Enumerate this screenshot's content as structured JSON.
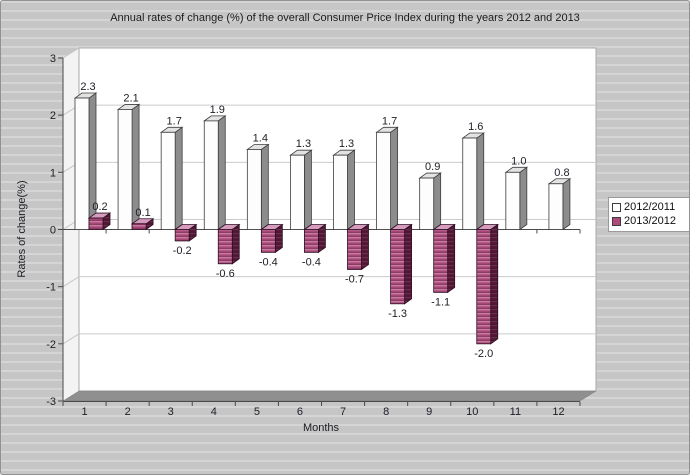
{
  "chart_data": {
    "type": "bar",
    "title": "Annual rates of change (%) of the overall Consumer Price Index during the years 2012 and 2013",
    "xlabel": "Months",
    "ylabel": "Rates of change(%)",
    "categories": [
      "1",
      "2",
      "3",
      "4",
      "5",
      "6",
      "7",
      "8",
      "9",
      "10",
      "11",
      "12"
    ],
    "series": [
      {
        "name": "2012/2011",
        "color": "#ffffff",
        "values": [
          2.3,
          2.1,
          1.7,
          1.9,
          1.4,
          1.3,
          1.3,
          1.7,
          0.9,
          1.6,
          1.0,
          0.8
        ]
      },
      {
        "name": "2013/2012",
        "color": "#b0487c",
        "values": [
          0.2,
          0.1,
          -0.2,
          -0.6,
          -0.4,
          -0.4,
          -0.7,
          -1.3,
          -1.1,
          -2.0,
          null,
          null
        ]
      }
    ],
    "ylim": [
      -3,
      3
    ],
    "y_ticks": [
      3,
      2,
      1,
      0,
      -1,
      -2,
      -3
    ],
    "grid": true,
    "legend_position": "right",
    "value_labels_decimals": 1,
    "style_3d": true
  }
}
